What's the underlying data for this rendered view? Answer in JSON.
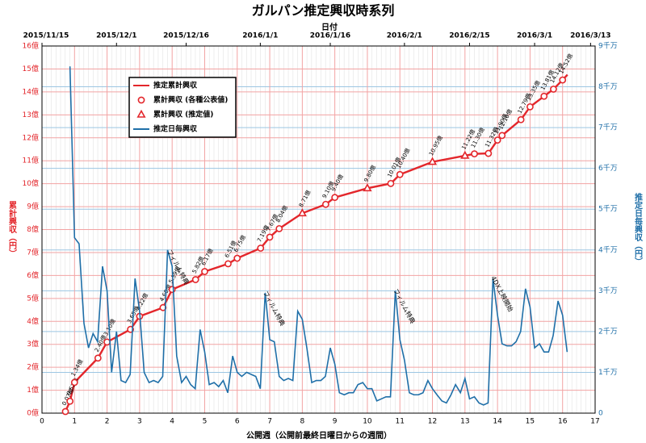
{
  "chart_data": {
    "type": "line",
    "title": "ガルパン推定興収時系列",
    "xlabel": "公開週（公開前最終日曜日からの週間）",
    "x2label": "日付",
    "ylabel": "累計興収（円）",
    "y2label": "推定日毎興収（円）",
    "xlim": [
      0,
      17
    ],
    "xticks": [
      0,
      1,
      2,
      3,
      4,
      5,
      6,
      7,
      8,
      9,
      10,
      11,
      12,
      13,
      14,
      15,
      16,
      17
    ],
    "x2ticks": [
      {
        "value": 0,
        "label": "2015/11/15"
      },
      {
        "value": 2.29,
        "label": "2015/12/1"
      },
      {
        "value": 4.43,
        "label": "2015/12/16"
      },
      {
        "value": 6.71,
        "label": "2016/1/1"
      },
      {
        "value": 8.86,
        "label": "2016/1/16"
      },
      {
        "value": 11.14,
        "label": "2016/2/1"
      },
      {
        "value": 13.14,
        "label": "2016/2/15"
      },
      {
        "value": 15.14,
        "label": "2016/3/1"
      },
      {
        "value": 16.86,
        "label": "2016/3/13"
      }
    ],
    "ylim": [
      0,
      16
    ],
    "yticks": [
      {
        "value": 0,
        "label": "0億"
      },
      {
        "value": 1,
        "label": "1億"
      },
      {
        "value": 2,
        "label": "2億"
      },
      {
        "value": 3,
        "label": "3億"
      },
      {
        "value": 4,
        "label": "4億"
      },
      {
        "value": 5,
        "label": "5億"
      },
      {
        "value": 6,
        "label": "6億"
      },
      {
        "value": 7,
        "label": "7億"
      },
      {
        "value": 8,
        "label": "8億"
      },
      {
        "value": 9,
        "label": "9億"
      },
      {
        "value": 10,
        "label": "10億"
      },
      {
        "value": 11,
        "label": "11億"
      },
      {
        "value": 12,
        "label": "12億"
      },
      {
        "value": 13,
        "label": "13億"
      },
      {
        "value": 14,
        "label": "14億"
      },
      {
        "value": 15,
        "label": "15億"
      },
      {
        "value": 16,
        "label": "16億"
      }
    ],
    "y2lim": [
      0,
      9
    ],
    "y2ticks": [
      0,
      {
        "value": 1,
        "label": "1千万"
      },
      {
        "value": 2,
        "label": "2千万"
      },
      {
        "value": 3,
        "label": "3千万"
      },
      {
        "value": 4,
        "label": "4千万"
      },
      {
        "value": 5,
        "label": "5千万"
      },
      {
        "value": 6,
        "label": "6千万"
      },
      {
        "value": 7,
        "label": "7千万"
      },
      {
        "value": 8,
        "label": "8千万"
      },
      {
        "value": 9,
        "label": "9千万"
      }
    ],
    "grid": true,
    "legend": "upper left",
    "series": [
      {
        "name": "推定累計興収",
        "color": "#e3262b",
        "style": "line",
        "x": [
          0.72,
          0.86,
          1.0,
          1.72,
          2.0,
          2.72,
          3.0,
          3.72,
          4.0,
          4.72,
          5.0,
          5.72,
          6.0,
          6.72,
          7.0,
          7.29,
          8.0,
          8.72,
          9.0,
          10.0,
          10.72,
          11.0,
          12.0,
          13.0,
          13.29,
          13.72,
          14.0,
          14.14,
          14.72,
          15.0,
          15.43,
          15.72,
          16.0,
          16.15
        ],
        "values": [
          0.07,
          0.52,
          1.34,
          2.4,
          3.1,
          3.65,
          4.22,
          4.6,
          5.39,
          5.82,
          6.17,
          6.51,
          6.75,
          7.19,
          7.67,
          8.04,
          8.71,
          9.1,
          9.4,
          9.8,
          10.01,
          10.4,
          10.95,
          11.22,
          11.3,
          11.32,
          11.9,
          12.1,
          12.79,
          13.35,
          13.81,
          14.12,
          14.52,
          14.75
        ]
      },
      {
        "name": "累計興収 (各種公表値)",
        "color": "#e3262b",
        "style": "circle",
        "x": [
          0.72,
          0.86,
          1.0,
          1.72,
          2.0,
          2.72,
          3.0,
          3.72,
          4.0,
          4.72,
          5.0,
          5.72,
          6.0,
          6.72,
          7.0,
          7.29,
          8.72,
          9.0,
          10.72,
          11.0,
          13.29,
          13.72,
          14.0,
          14.14,
          14.72,
          15.0,
          15.43,
          15.72,
          16.0
        ],
        "values": [
          0.07,
          0.52,
          1.34,
          2.4,
          3.1,
          3.65,
          4.22,
          4.6,
          5.39,
          5.82,
          6.17,
          6.51,
          6.75,
          7.19,
          7.67,
          8.04,
          9.1,
          9.4,
          10.01,
          10.4,
          11.3,
          11.32,
          11.9,
          12.1,
          12.79,
          13.35,
          13.81,
          14.12,
          14.52
        ],
        "value_labels": [
          "0.07億",
          "0.52億",
          "1.34億",
          "2.40億",
          "3.10億",
          "3.65億",
          "4.22億",
          "4.60億",
          "5.39億",
          "5.82億",
          "6.17億",
          "6.51億",
          "6.75億",
          "7.19億",
          "7.67億",
          "8.04億",
          "9.10億",
          "9.40億",
          "10.01億",
          "10.40億",
          "11.30億",
          "11.32億",
          "11.90億",
          "12.10億",
          "12.79億",
          "13.35億",
          "13.81億",
          "14.12億",
          "14.52億"
        ]
      },
      {
        "name": "累計興収 (推定値)",
        "color": "#e3262b",
        "style": "triangle",
        "x": [
          8.0,
          10.0,
          12.0,
          13.0
        ],
        "values": [
          8.71,
          9.8,
          10.95,
          11.22
        ],
        "value_labels": [
          "8.71億",
          "9.80億",
          "10.95億",
          "11.22億"
        ]
      },
      {
        "name": "推定日毎興収",
        "color": "#1f6fa8",
        "style": "line",
        "axis": "y2",
        "x": [
          0.86,
          1,
          1.14,
          1.29,
          1.43,
          1.57,
          1.71,
          1.86,
          2,
          2.14,
          2.29,
          2.43,
          2.57,
          2.71,
          2.86,
          3,
          3.14,
          3.29,
          3.43,
          3.57,
          3.71,
          3.86,
          4,
          4.14,
          4.29,
          4.43,
          4.57,
          4.71,
          4.86,
          5,
          5.14,
          5.29,
          5.43,
          5.57,
          5.71,
          5.86,
          6,
          6.14,
          6.29,
          6.43,
          6.57,
          6.71,
          6.86,
          7,
          7.14,
          7.29,
          7.43,
          7.57,
          7.71,
          7.86,
          8,
          8.14,
          8.29,
          8.43,
          8.57,
          8.71,
          8.86,
          9,
          9.14,
          9.29,
          9.43,
          9.57,
          9.71,
          9.86,
          10,
          10.14,
          10.29,
          10.43,
          10.57,
          10.71,
          10.86,
          11,
          11.14,
          11.29,
          11.43,
          11.57,
          11.71,
          11.86,
          12,
          12.14,
          12.29,
          12.43,
          12.57,
          12.71,
          12.86,
          13,
          13.14,
          13.29,
          13.43,
          13.57,
          13.71,
          13.86,
          14,
          14.14,
          14.29,
          14.43,
          14.57,
          14.71,
          14.86,
          15,
          15.14,
          15.29,
          15.43,
          15.57,
          15.71,
          15.86,
          16,
          16.14
        ],
        "values": [
          8.5,
          4.3,
          4.15,
          2.2,
          1.6,
          1.95,
          1.75,
          3.6,
          3.0,
          1.0,
          2.0,
          0.8,
          0.75,
          0.95,
          3.3,
          2.5,
          1.0,
          0.75,
          0.8,
          0.75,
          0.9,
          4.0,
          3.6,
          1.4,
          0.75,
          0.9,
          0.7,
          0.6,
          2.05,
          1.5,
          0.7,
          0.75,
          0.65,
          0.8,
          0.5,
          1.4,
          1.0,
          0.9,
          1.0,
          0.95,
          0.9,
          0.6,
          2.95,
          1.8,
          1.75,
          0.9,
          0.8,
          0.85,
          0.8,
          2.5,
          2.3,
          1.6,
          0.75,
          0.8,
          0.8,
          0.9,
          1.6,
          1.2,
          0.5,
          0.45,
          0.5,
          0.5,
          0.7,
          0.75,
          0.6,
          0.6,
          0.3,
          0.35,
          0.4,
          0.4,
          3.0,
          1.8,
          1.3,
          0.5,
          0.45,
          0.45,
          0.5,
          0.8,
          0.6,
          0.45,
          0.3,
          0.25,
          0.45,
          0.7,
          0.5,
          0.85,
          0.35,
          0.4,
          0.25,
          0.2,
          0.25,
          3.3,
          2.4,
          1.7,
          1.65,
          1.65,
          1.75,
          2.0,
          3.05,
          2.6,
          1.6,
          1.7,
          1.5,
          1.5,
          1.9,
          2.75,
          2.4,
          1.5
        ]
      }
    ],
    "annotations": [
      {
        "text": "フィルム特典",
        "x": 3.9,
        "y": 7.1
      },
      {
        "text": "フィルム特典",
        "x": 6.85,
        "y": 5.3
      },
      {
        "text": "フィルム特典",
        "x": 10.85,
        "y": 5.4
      },
      {
        "text": "4DX上映開始",
        "x": 13.85,
        "y": 5.95
      }
    ]
  }
}
